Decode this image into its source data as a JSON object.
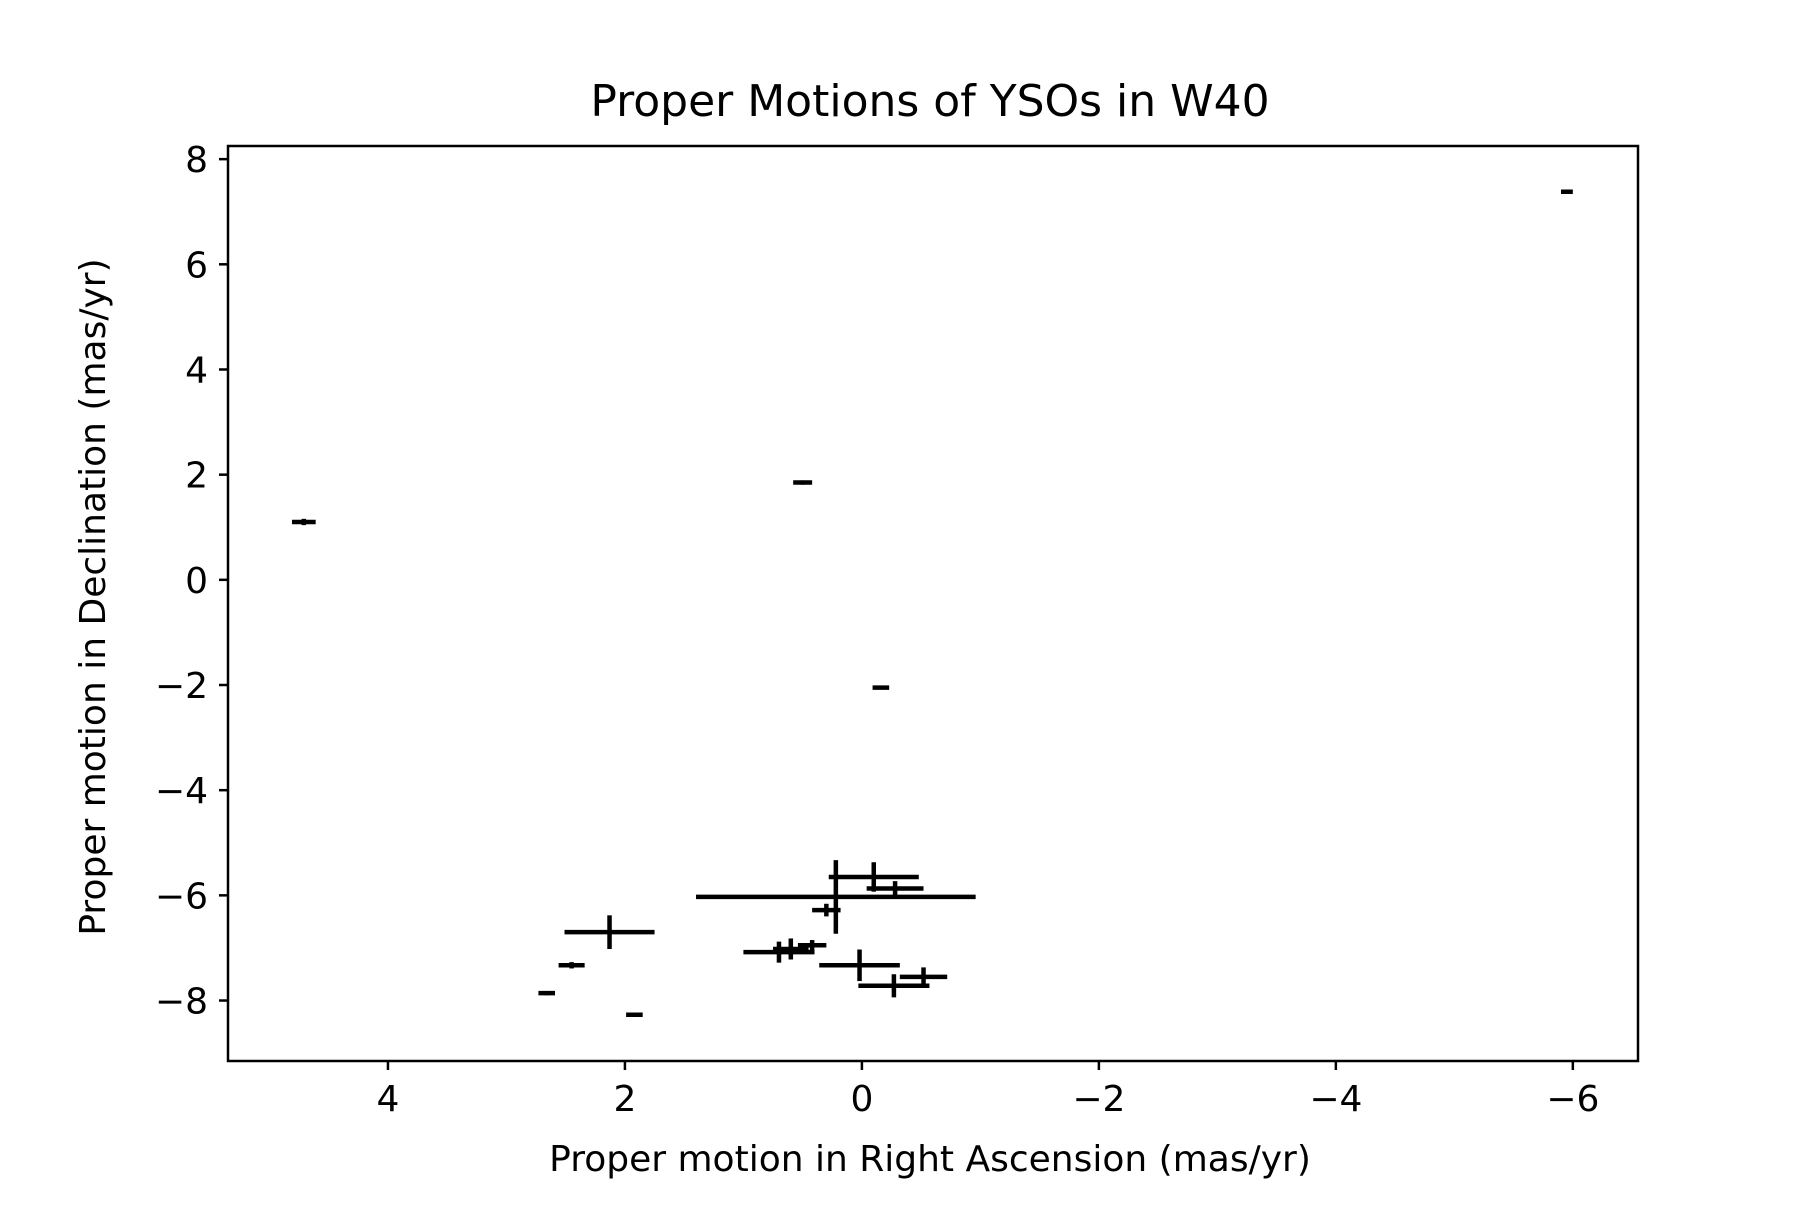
{
  "chart_data": {
    "type": "scatter",
    "title": "Proper Motions of YSOs in W40",
    "xlabel": "Proper motion in Right Ascension (mas/yr)",
    "ylabel": "Proper motion in Declination (mas/yr)",
    "xlim": [
      5.35,
      -6.55
    ],
    "ylim": [
      -9.15,
      8.25
    ],
    "x_inverted": true,
    "xticks": [
      4,
      2,
      0,
      -2,
      -4,
      -6
    ],
    "xtick_labels": [
      "4",
      "2",
      "0",
      "−2",
      "−4",
      "−6"
    ],
    "yticks": [
      8,
      6,
      4,
      2,
      0,
      -2,
      -4,
      -6,
      -8
    ],
    "ytick_labels": [
      "8",
      "6",
      "4",
      "2",
      "0",
      "−2",
      "−4",
      "−6",
      "−8"
    ],
    "grid": false,
    "legend": "none",
    "marker_color": "#000000",
    "series": [
      {
        "points": [
          {
            "x": 4.71,
            "y": 1.1,
            "xerr": 0.1,
            "yerr": 0.06
          },
          {
            "x": 0.5,
            "y": 1.85,
            "xerr": 0.08,
            "yerr": 0.04
          },
          {
            "x": -0.16,
            "y": -2.05,
            "xerr": 0.07,
            "yerr": 0.03
          },
          {
            "x": -5.95,
            "y": 7.38,
            "xerr": 0.05,
            "yerr": 0.02
          },
          {
            "x": 2.66,
            "y": -7.86,
            "xerr": 0.07,
            "yerr": 0.04
          },
          {
            "x": 2.45,
            "y": -7.33,
            "xerr": 0.11,
            "yerr": 0.06
          },
          {
            "x": 1.92,
            "y": -8.27,
            "xerr": 0.07,
            "yerr": 0.04
          },
          {
            "x": 2.13,
            "y": -6.7,
            "xerr": 0.38,
            "yerr": 0.32
          },
          {
            "x": 0.7,
            "y": -7.08,
            "xerr": 0.3,
            "yerr": 0.2
          },
          {
            "x": 0.6,
            "y": -7.02,
            "xerr": 0.15,
            "yerr": 0.2
          },
          {
            "x": 0.42,
            "y": -6.95,
            "xerr": 0.12,
            "yerr": 0.1
          },
          {
            "x": 0.22,
            "y": -6.03,
            "xerr": 1.18,
            "yerr": 0.7
          },
          {
            "x": 0.3,
            "y": -6.28,
            "xerr": 0.12,
            "yerr": 0.12
          },
          {
            "x": -0.1,
            "y": -5.65,
            "xerr": 0.38,
            "yerr": 0.28
          },
          {
            "x": -0.28,
            "y": -5.87,
            "xerr": 0.24,
            "yerr": 0.14
          },
          {
            "x": 0.02,
            "y": -7.33,
            "xerr": 0.34,
            "yerr": 0.3
          },
          {
            "x": -0.27,
            "y": -7.72,
            "xerr": 0.3,
            "yerr": 0.22
          },
          {
            "x": -0.52,
            "y": -7.55,
            "xerr": 0.2,
            "yerr": 0.18
          }
        ]
      }
    ]
  }
}
